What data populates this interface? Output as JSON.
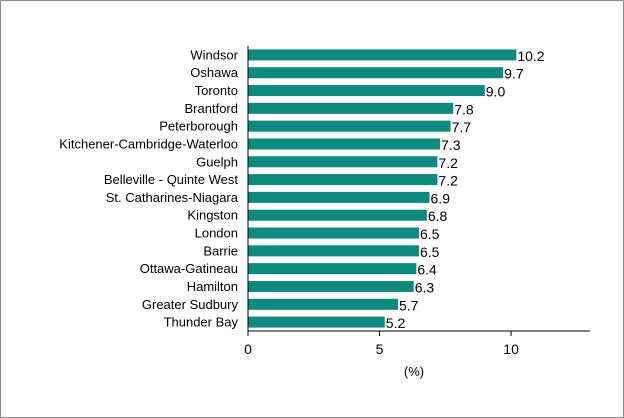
{
  "chart_data": {
    "type": "bar",
    "orientation": "horizontal",
    "categories": [
      "Windsor",
      "Oshawa",
      "Toronto",
      "Brantford",
      "Peterborough",
      "Kitchener-Cambridge-Waterloo",
      "Guelph",
      "Belleville - Quinte West",
      "St. Catharines-Niagara",
      "Kingston",
      "London",
      "Barrie",
      "Ottawa-Gatineau",
      "Hamilton",
      "Greater Sudbury",
      "Thunder Bay"
    ],
    "values": [
      10.2,
      9.7,
      9.0,
      7.8,
      7.7,
      7.3,
      7.2,
      7.2,
      6.9,
      6.8,
      6.5,
      6.5,
      6.4,
      6.3,
      5.7,
      5.2
    ],
    "value_labels": [
      "10.2",
      "9.7",
      "9.0",
      "7.8",
      "7.7",
      "7.3",
      "7.2",
      "7.2",
      "6.9",
      "6.8",
      "6.5",
      "6.5",
      "6.4",
      "6.3",
      "5.7",
      "5.2"
    ],
    "xlabel": "(%)",
    "ylabel": "",
    "title": "",
    "xlim": [
      0,
      13
    ],
    "xticks": [
      0,
      5,
      10
    ],
    "xtick_labels": [
      "0",
      "5",
      "10"
    ],
    "grid": false,
    "colors": {
      "bar": "#0f8a7e",
      "axis": "#000000",
      "border": "#8c8c8c"
    }
  }
}
